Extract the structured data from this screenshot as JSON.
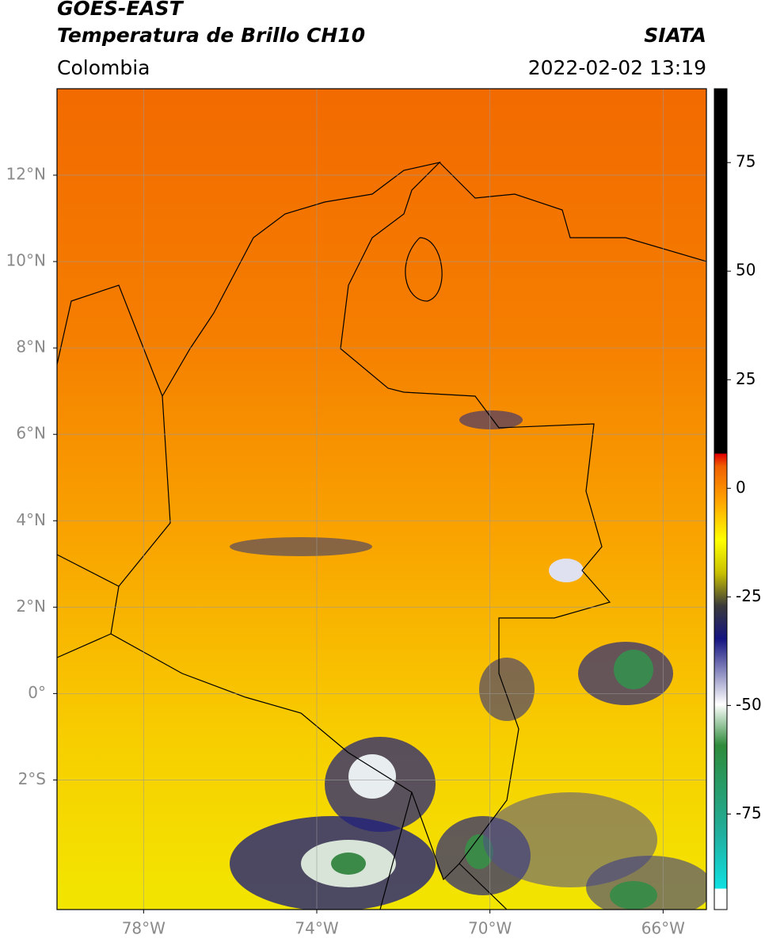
{
  "header": {
    "satellite": "GOES-EAST",
    "product": "Temperatura de Brillo CH10",
    "source": "SIATA",
    "region": "Colombia",
    "datetime": "2022-02-02 13:19"
  },
  "map": {
    "lonlim": [
      -80,
      -65
    ],
    "latlim": [
      -5,
      14
    ],
    "lon_ticks": [
      {
        "value": -78,
        "label": "78°W"
      },
      {
        "value": -74,
        "label": "74°W"
      },
      {
        "value": -70,
        "label": "70°W"
      },
      {
        "value": -66,
        "label": "66°W"
      }
    ],
    "lat_ticks": [
      {
        "value": 12,
        "label": "12°N"
      },
      {
        "value": 10,
        "label": "10°N"
      },
      {
        "value": 8,
        "label": "8°N"
      },
      {
        "value": 6,
        "label": "6°N"
      },
      {
        "value": 4,
        "label": "4°N"
      },
      {
        "value": 2,
        "label": "2°N"
      },
      {
        "value": 0,
        "label": "0°"
      },
      {
        "value": -2,
        "label": "2°S"
      }
    ],
    "grid": true
  },
  "colorbar": {
    "lim": [
      -97,
      92
    ],
    "ticks": [
      75,
      50,
      25,
      0,
      -25,
      -50,
      -75
    ]
  }
}
